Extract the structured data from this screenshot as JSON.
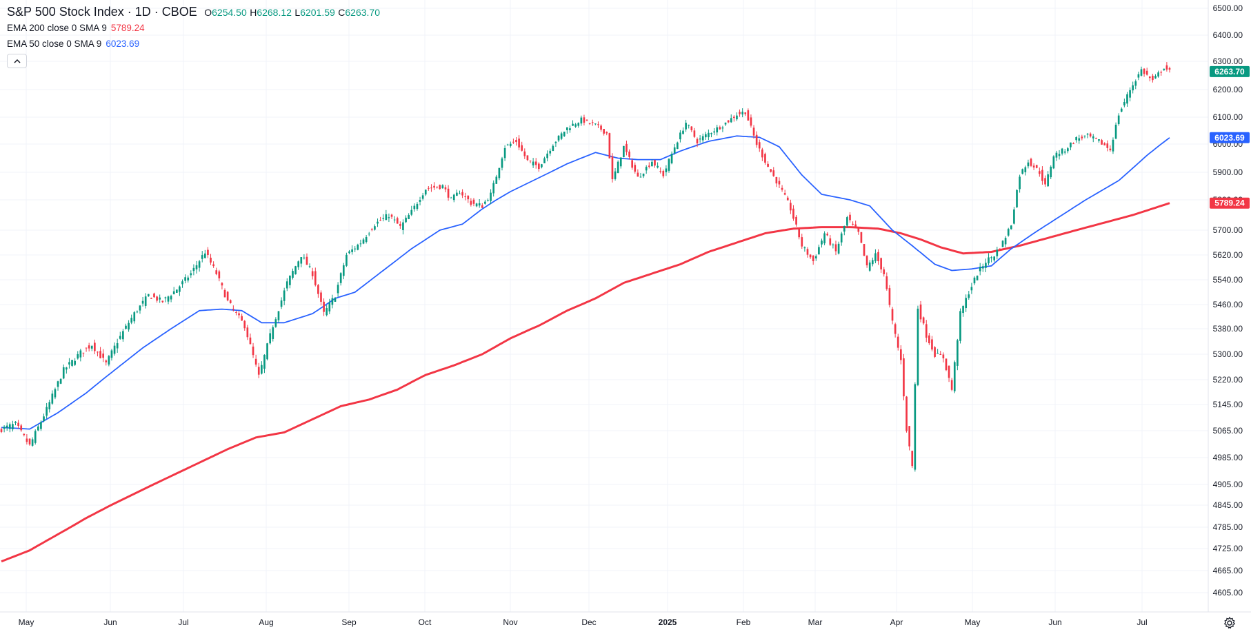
{
  "legend": {
    "title": "S&P 500 Stock Index · 1D · CBOE",
    "ohlc": [
      {
        "key": "O",
        "value": "6254.50"
      },
      {
        "key": "H",
        "value": "6268.12"
      },
      {
        "key": "L",
        "value": "6201.59"
      },
      {
        "key": "C",
        "value": "6263.70"
      }
    ],
    "indicators": [
      {
        "label": "EMA 200 close 0 SMA 9",
        "value": "5789.24",
        "color": "#f23645"
      },
      {
        "label": "EMA 50 close 0 SMA 9",
        "value": "6023.69",
        "color": "#2962ff"
      }
    ]
  },
  "icons": {
    "collapse": "chevron-up-icon",
    "settings": "gear-icon"
  },
  "colors": {
    "up": "#089981",
    "down": "#f23645",
    "ema200": "#f23645",
    "ema50": "#2962ff",
    "grid": "#f0f3fa"
  },
  "chart_data": {
    "type": "candlestick",
    "symbol": "S&P 500 Stock Index",
    "interval": "1D",
    "source": "CBOE",
    "price_axis_ticks": [
      6500,
      6400,
      6300,
      6200,
      6100,
      6000,
      5900,
      5800,
      5700,
      5620,
      5540,
      5460,
      5380,
      5300,
      5220,
      5145,
      5065,
      4985,
      4905,
      4845,
      4785,
      4725,
      4665,
      4605
    ],
    "price_axis_labels": [
      "6500.00",
      "6400.00",
      "6300.00",
      "6200.00",
      "6100.00",
      "6000.00",
      "5900.00",
      "5800.00",
      "5700.00",
      "5620.00",
      "5540.00",
      "5460.00",
      "5380.00",
      "5300.00",
      "5220.00",
      "5145.00",
      "5065.00",
      "4985.00",
      "4905.00",
      "4845.00",
      "4785.00",
      "4725.00",
      "4665.00",
      "4605.00"
    ],
    "time_axis": [
      {
        "label": "May",
        "bold": false
      },
      {
        "label": "Jun",
        "bold": false
      },
      {
        "label": "Jul",
        "bold": false
      },
      {
        "label": "Aug",
        "bold": false
      },
      {
        "label": "Sep",
        "bold": false
      },
      {
        "label": "Oct",
        "bold": false
      },
      {
        "label": "Nov",
        "bold": false
      },
      {
        "label": "Dec",
        "bold": false
      },
      {
        "label": "2025",
        "bold": true
      },
      {
        "label": "Feb",
        "bold": false
      },
      {
        "label": "Mar",
        "bold": false
      },
      {
        "label": "Apr",
        "bold": false
      },
      {
        "label": "May",
        "bold": false
      },
      {
        "label": "Jun",
        "bold": false
      },
      {
        "label": "Jul",
        "bold": false
      }
    ],
    "last_price": {
      "value": 6263.7,
      "label": "6263.70",
      "color": "#089981"
    },
    "ema50_last": {
      "value": 6023.69,
      "label": "6023.69",
      "color": "#2962ff"
    },
    "ema200_last": {
      "value": 5789.24,
      "label": "5789.24",
      "color": "#f23645"
    },
    "close_path": [
      [
        0,
        5070
      ],
      [
        5,
        5085
      ],
      [
        10,
        5020
      ],
      [
        16,
        5130
      ],
      [
        22,
        5250
      ],
      [
        28,
        5305
      ],
      [
        32,
        5330
      ],
      [
        37,
        5270
      ],
      [
        41,
        5340
      ],
      [
        47,
        5430
      ],
      [
        52,
        5490
      ],
      [
        57,
        5470
      ],
      [
        62,
        5510
      ],
      [
        67,
        5560
      ],
      [
        72,
        5630
      ],
      [
        76,
        5560
      ],
      [
        80,
        5470
      ],
      [
        86,
        5390
      ],
      [
        91,
        5230
      ],
      [
        96,
        5390
      ],
      [
        101,
        5530
      ],
      [
        106,
        5620
      ],
      [
        110,
        5560
      ],
      [
        114,
        5430
      ],
      [
        118,
        5490
      ],
      [
        122,
        5620
      ],
      [
        127,
        5660
      ],
      [
        132,
        5720
      ],
      [
        137,
        5750
      ],
      [
        141,
        5710
      ],
      [
        145,
        5760
      ],
      [
        150,
        5840
      ],
      [
        156,
        5850
      ],
      [
        159,
        5800
      ],
      [
        162,
        5830
      ],
      [
        166,
        5790
      ],
      [
        170,
        5780
      ],
      [
        173,
        5820
      ],
      [
        178,
        5990
      ],
      [
        182,
        6010
      ],
      [
        186,
        5940
      ],
      [
        190,
        5920
      ],
      [
        195,
        6000
      ],
      [
        200,
        6060
      ],
      [
        205,
        6090
      ],
      [
        210,
        6070
      ],
      [
        214,
        6040
      ],
      [
        216,
        5870
      ],
      [
        220,
        5990
      ],
      [
        225,
        5880
      ],
      [
        230,
        5940
      ],
      [
        234,
        5890
      ],
      [
        238,
        5990
      ],
      [
        242,
        6080
      ],
      [
        246,
        6010
      ],
      [
        250,
        6040
      ],
      [
        255,
        6070
      ],
      [
        260,
        6110
      ],
      [
        263,
        6120
      ],
      [
        267,
        6000
      ],
      [
        271,
        5920
      ],
      [
        275,
        5850
      ],
      [
        279,
        5770
      ],
      [
        283,
        5650
      ],
      [
        287,
        5600
      ],
      [
        291,
        5690
      ],
      [
        295,
        5630
      ],
      [
        299,
        5740
      ],
      [
        303,
        5690
      ],
      [
        306,
        5580
      ],
      [
        309,
        5620
      ],
      [
        312,
        5560
      ],
      [
        315,
        5400
      ],
      [
        318,
        5280
      ],
      [
        320,
        5070
      ],
      [
        322,
        4960
      ],
      [
        324,
        5450
      ],
      [
        327,
        5360
      ],
      [
        330,
        5300
      ],
      [
        333,
        5290
      ],
      [
        336,
        5190
      ],
      [
        339,
        5430
      ],
      [
        342,
        5500
      ],
      [
        345,
        5560
      ],
      [
        348,
        5600
      ],
      [
        351,
        5620
      ],
      [
        354,
        5660
      ],
      [
        357,
        5720
      ],
      [
        360,
        5890
      ],
      [
        363,
        5940
      ],
      [
        367,
        5900
      ],
      [
        369,
        5850
      ],
      [
        372,
        5960
      ],
      [
        376,
        5980
      ],
      [
        380,
        6020
      ],
      [
        384,
        6030
      ],
      [
        388,
        6010
      ],
      [
        392,
        5980
      ],
      [
        395,
        6110
      ],
      [
        399,
        6200
      ],
      [
        403,
        6270
      ],
      [
        407,
        6230
      ],
      [
        411,
        6280
      ],
      [
        413,
        6263.7
      ]
    ],
    "ema50_path": [
      [
        0,
        5075
      ],
      [
        10,
        5070
      ],
      [
        20,
        5120
      ],
      [
        30,
        5180
      ],
      [
        40,
        5250
      ],
      [
        50,
        5320
      ],
      [
        60,
        5380
      ],
      [
        70,
        5440
      ],
      [
        78,
        5445
      ],
      [
        85,
        5440
      ],
      [
        92,
        5400
      ],
      [
        100,
        5400
      ],
      [
        110,
        5430
      ],
      [
        118,
        5480
      ],
      [
        125,
        5500
      ],
      [
        135,
        5570
      ],
      [
        145,
        5640
      ],
      [
        155,
        5700
      ],
      [
        163,
        5720
      ],
      [
        170,
        5770
      ],
      [
        180,
        5830
      ],
      [
        190,
        5880
      ],
      [
        200,
        5930
      ],
      [
        210,
        5970
      ],
      [
        218,
        5950
      ],
      [
        225,
        5945
      ],
      [
        233,
        5945
      ],
      [
        240,
        5975
      ],
      [
        250,
        6010
      ],
      [
        260,
        6030
      ],
      [
        268,
        6025
      ],
      [
        275,
        5990
      ],
      [
        283,
        5890
      ],
      [
        290,
        5820
      ],
      [
        300,
        5800
      ],
      [
        307,
        5780
      ],
      [
        315,
        5700
      ],
      [
        322,
        5650
      ],
      [
        330,
        5590
      ],
      [
        336,
        5570
      ],
      [
        343,
        5575
      ],
      [
        350,
        5585
      ],
      [
        357,
        5640
      ],
      [
        365,
        5690
      ],
      [
        375,
        5750
      ],
      [
        385,
        5810
      ],
      [
        395,
        5870
      ],
      [
        405,
        5960
      ],
      [
        413,
        6023.69
      ]
    ],
    "ema200_path": [
      [
        0,
        4690
      ],
      [
        10,
        4720
      ],
      [
        20,
        4765
      ],
      [
        30,
        4810
      ],
      [
        40,
        4850
      ],
      [
        50,
        4890
      ],
      [
        60,
        4930
      ],
      [
        70,
        4970
      ],
      [
        80,
        5010
      ],
      [
        90,
        5045
      ],
      [
        100,
        5060
      ],
      [
        110,
        5100
      ],
      [
        120,
        5140
      ],
      [
        130,
        5160
      ],
      [
        140,
        5190
      ],
      [
        150,
        5235
      ],
      [
        160,
        5265
      ],
      [
        170,
        5300
      ],
      [
        180,
        5350
      ],
      [
        190,
        5390
      ],
      [
        200,
        5440
      ],
      [
        210,
        5480
      ],
      [
        220,
        5530
      ],
      [
        230,
        5560
      ],
      [
        240,
        5590
      ],
      [
        250,
        5630
      ],
      [
        260,
        5660
      ],
      [
        270,
        5690
      ],
      [
        280,
        5705
      ],
      [
        290,
        5710
      ],
      [
        300,
        5710
      ],
      [
        310,
        5705
      ],
      [
        318,
        5690
      ],
      [
        325,
        5670
      ],
      [
        332,
        5645
      ],
      [
        340,
        5625
      ],
      [
        350,
        5630
      ],
      [
        360,
        5650
      ],
      [
        370,
        5675
      ],
      [
        380,
        5700
      ],
      [
        390,
        5725
      ],
      [
        400,
        5750
      ],
      [
        413,
        5789.24
      ]
    ]
  }
}
